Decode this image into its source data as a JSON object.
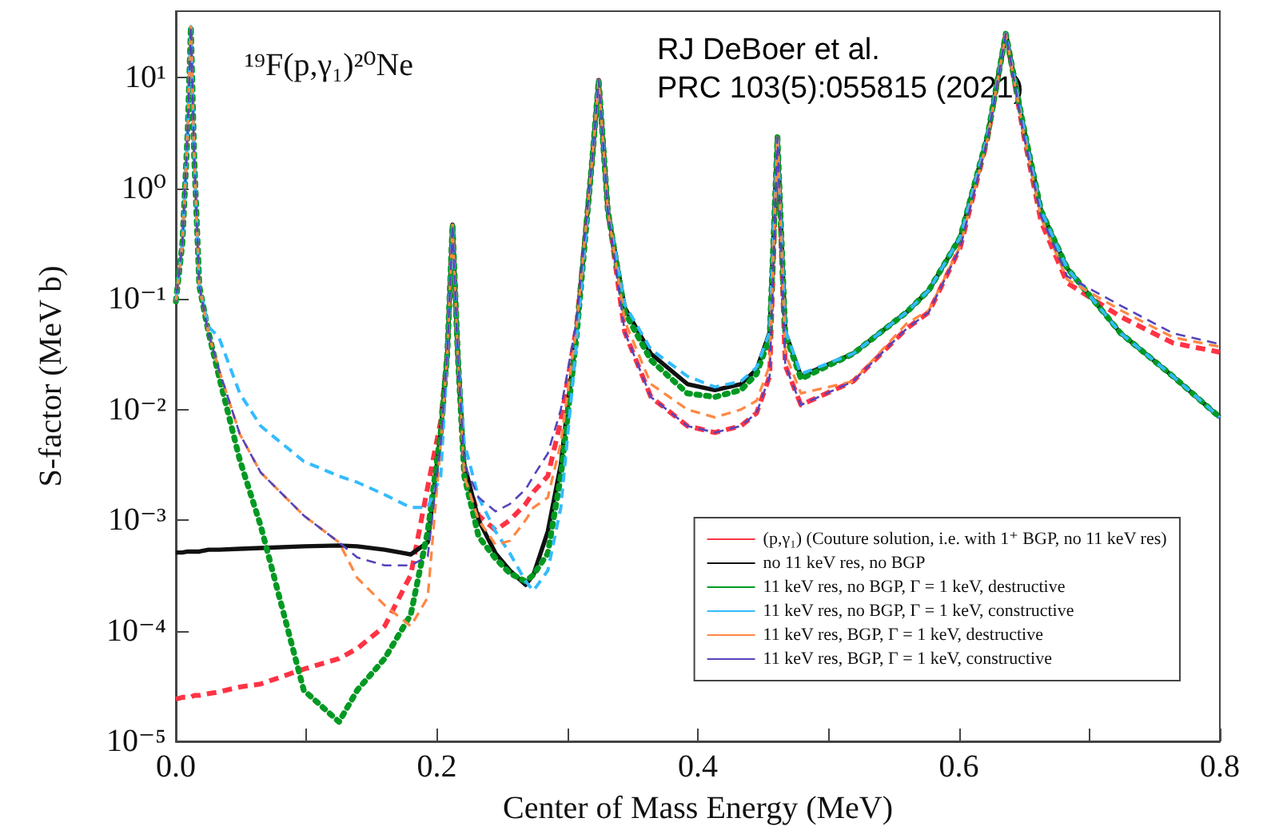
{
  "chart_data": {
    "type": "line",
    "title": "¹⁹F(p,γ₁)²⁰Ne",
    "annotations": [
      "RJ DeBoer et al.",
      "PRC 103(5):055815 (2021)"
    ],
    "xlabel": "Center of Mass Energy (MeV)",
    "ylabel": "S-factor (MeV b)",
    "x": [
      0,
      0.005,
      0.009,
      0.0115,
      0.014,
      0.018,
      0.025,
      0.033,
      0.049,
      0.065,
      0.098,
      0.125,
      0.139,
      0.16,
      0.18,
      0.193,
      0.203,
      0.208,
      0.212,
      0.216,
      0.221,
      0.232,
      0.245,
      0.256,
      0.268,
      0.274,
      0.285,
      0.295,
      0.307,
      0.319,
      0.324,
      0.331,
      0.344,
      0.364,
      0.392,
      0.413,
      0.433,
      0.445,
      0.455,
      0.461,
      0.467,
      0.479,
      0.519,
      0.56,
      0.577,
      0.601,
      0.622,
      0.636,
      0.65,
      0.663,
      0.683,
      0.724,
      0.764,
      0.8
    ],
    "xlim": [
      0,
      0.8
    ],
    "xticks": [
      {
        "value": 0,
        "label": "0.0"
      },
      {
        "value": 0.1,
        "label": null
      },
      {
        "value": 0.2,
        "label": "0.2"
      },
      {
        "value": 0.3,
        "label": null
      },
      {
        "value": 0.4,
        "label": "0.4"
      },
      {
        "value": 0.5,
        "label": null
      },
      {
        "value": 0.6,
        "label": "0.6"
      },
      {
        "value": 0.7,
        "label": null
      },
      {
        "value": 0.8,
        "label": "0.8"
      }
    ],
    "ylim": [
      1e-05,
      40
    ],
    "yticks": [
      {
        "value": 1e-05,
        "label": "10⁻⁵"
      },
      {
        "value": 0.0001,
        "label": "10⁻⁴"
      },
      {
        "value": 0.001,
        "label": "10⁻³"
      },
      {
        "value": 0.01,
        "label": "10⁻²"
      },
      {
        "value": 0.1,
        "label": "10⁻¹"
      },
      {
        "value": 1,
        "label": "10⁰"
      },
      {
        "value": 10,
        "label": "10¹"
      }
    ],
    "log": "y",
    "grid": false,
    "legend": "bottom right",
    "marker": "none",
    "series": [
      {
        "name": "(p,γ₁) (Couture solution, i.e. with 1⁺ BGP, no 11 keV res)",
        "color": "#ff3344",
        "line_style": "dashed",
        "values": [
          2.4e-05,
          2.5e-05,
          2.5e-05,
          2.5e-05,
          2.6e-05,
          2.6e-05,
          2.7e-05,
          2.8e-05,
          3.1e-05,
          3.3e-05,
          4.5e-05,
          5.6e-05,
          6.9e-05,
          0.00011,
          0.00032,
          0.002,
          0.0079,
          0.032,
          0.47,
          0.032,
          0.0028,
          0.0011,
          0.00081,
          0.001,
          0.0014,
          0.0018,
          0.0025,
          0.0079,
          0.056,
          1.8,
          9.5,
          0.63,
          0.05,
          0.013,
          0.0071,
          0.0062,
          0.0071,
          0.0093,
          0.02,
          2.9,
          0.025,
          0.011,
          0.018,
          0.054,
          0.076,
          0.29,
          2.8,
          25,
          2.9,
          0.5,
          0.14,
          0.069,
          0.04,
          0.033
        ]
      },
      {
        "name": "no 11 keV res, no BGP",
        "color": "#111111",
        "line_style": "solid",
        "values": [
          0.00051,
          0.00051,
          0.00052,
          0.00052,
          0.00052,
          0.00052,
          0.00054,
          0.00054,
          0.00055,
          0.00056,
          0.00058,
          0.00059,
          0.00058,
          0.00054,
          0.00049,
          0.00063,
          0.0063,
          0.032,
          0.47,
          0.032,
          0.0032,
          0.001,
          0.0005,
          0.00035,
          0.00026,
          0.00032,
          0.00079,
          0.0032,
          0.05,
          1.8,
          9.5,
          0.63,
          0.083,
          0.032,
          0.017,
          0.015,
          0.017,
          0.023,
          0.05,
          2.9,
          0.05,
          0.02,
          0.032,
          0.076,
          0.12,
          0.36,
          3.0,
          25,
          3.4,
          0.63,
          0.19,
          0.049,
          0.02,
          0.0085
        ]
      },
      {
        "name": "11 keV res, no BGP, Γ = 1 keV, destructive",
        "color": "#009922",
        "line_style": "dotted",
        "values": [
          0.095,
          0.32,
          3.2,
          29,
          2.0,
          0.13,
          0.05,
          0.02,
          0.0035,
          0.00089,
          2.9e-05,
          1.5e-05,
          2.9e-05,
          5.6e-05,
          0.00014,
          0.00079,
          0.0063,
          0.032,
          0.47,
          0.032,
          0.0025,
          0.00071,
          0.00045,
          0.00033,
          0.00028,
          0.00032,
          0.0005,
          0.0025,
          0.045,
          1.8,
          9.5,
          0.63,
          0.076,
          0.028,
          0.014,
          0.013,
          0.015,
          0.021,
          0.045,
          2.9,
          0.048,
          0.019,
          0.032,
          0.076,
          0.12,
          0.36,
          3.0,
          25,
          3.4,
          0.63,
          0.19,
          0.049,
          0.02,
          0.0085
        ]
      },
      {
        "name": "11 keV res, no BGP, Γ = 1 keV, constructive",
        "color": "#33bbff",
        "line_style": "dashed",
        "values": [
          0.095,
          0.32,
          3.2,
          29,
          2.0,
          0.13,
          0.056,
          0.045,
          0.014,
          0.0071,
          0.0034,
          0.0025,
          0.0022,
          0.0017,
          0.0013,
          0.0013,
          0.0025,
          0.032,
          0.47,
          0.032,
          0.005,
          0.0016,
          0.00079,
          0.0005,
          0.00028,
          0.00023,
          0.00035,
          0.0013,
          0.04,
          1.8,
          9.5,
          0.63,
          0.089,
          0.035,
          0.02,
          0.016,
          0.018,
          0.024,
          0.05,
          2.9,
          0.052,
          0.021,
          0.032,
          0.076,
          0.12,
          0.36,
          3.0,
          25,
          3.4,
          0.63,
          0.19,
          0.049,
          0.02,
          0.0085
        ]
      },
      {
        "name": "11 keV res, BGP, Γ = 1 keV, destructive",
        "color": "#ff8844",
        "line_style": "dashed",
        "values": [
          0.095,
          0.32,
          3.2,
          29,
          2.0,
          0.13,
          0.049,
          0.023,
          0.006,
          0.0027,
          0.0011,
          0.00063,
          0.0003,
          0.00017,
          0.00011,
          0.0002,
          0.005,
          0.032,
          0.47,
          0.032,
          0.0025,
          0.001,
          0.0006,
          0.00065,
          0.001,
          0.0013,
          0.0016,
          0.005,
          0.056,
          1.8,
          9.5,
          0.63,
          0.063,
          0.017,
          0.01,
          0.0085,
          0.01,
          0.012,
          0.025,
          2.9,
          0.032,
          0.014,
          0.018,
          0.06,
          0.079,
          0.3,
          2.8,
          25,
          3.0,
          0.54,
          0.15,
          0.079,
          0.045,
          0.037
        ]
      },
      {
        "name": "11 keV res, BGP, Γ = 1 keV, constructive",
        "color": "#5544bb",
        "line_style": "dashed",
        "values": [
          0.095,
          0.32,
          3.2,
          29,
          2.0,
          0.13,
          0.049,
          0.023,
          0.006,
          0.0027,
          0.0011,
          0.00063,
          0.00046,
          0.00039,
          0.00039,
          0.00047,
          0.005,
          0.032,
          0.47,
          0.032,
          0.0032,
          0.0016,
          0.0012,
          0.0014,
          0.0019,
          0.0025,
          0.004,
          0.01,
          0.063,
          1.8,
          9.5,
          0.63,
          0.05,
          0.013,
          0.0071,
          0.0062,
          0.0071,
          0.0093,
          0.02,
          2.9,
          0.025,
          0.011,
          0.018,
          0.054,
          0.076,
          0.29,
          2.8,
          25,
          2.9,
          0.56,
          0.16,
          0.087,
          0.049,
          0.039
        ]
      }
    ]
  }
}
